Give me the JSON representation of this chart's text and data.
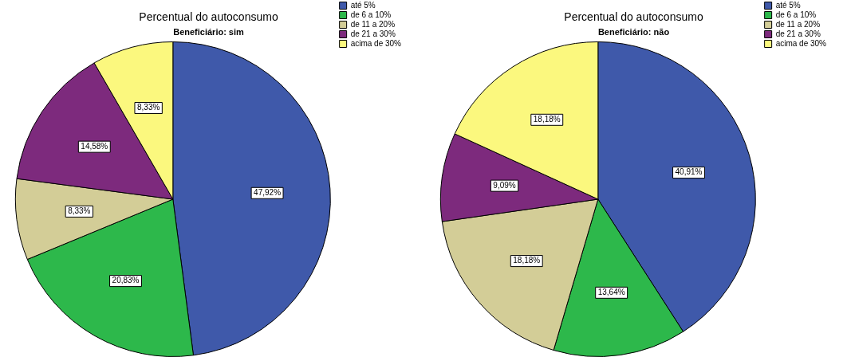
{
  "chart_data": [
    {
      "type": "pie",
      "title": "Percentual do autoconsumo",
      "subtitle": "Beneficiário: sim",
      "categories": [
        "até 5%",
        "de 6 a 10%",
        "de 11 a 20%",
        "de 21 a 30%",
        "acima de 30%"
      ],
      "values": [
        47.92,
        20.83,
        8.33,
        14.58,
        8.33
      ],
      "value_labels": [
        "47,92%",
        "20,83%",
        "8,33%",
        "14,58%",
        "8,33%"
      ],
      "colors": [
        "#3f59aa",
        "#2db84b",
        "#d3cd97",
        "#7d2a7d",
        "#fbf87e"
      ],
      "legend": "top right"
    },
    {
      "type": "pie",
      "title": "Percentual do autoconsumo",
      "subtitle": "Beneficiário: não",
      "categories": [
        "até 5%",
        "de 6 a 10%",
        "de 11 a 20%",
        "de 21 a 30%",
        "acima de 30%"
      ],
      "values": [
        40.91,
        13.64,
        18.18,
        9.09,
        18.18
      ],
      "value_labels": [
        "40,91%",
        "13,64%",
        "18,18%",
        "9,09%",
        "18,18%"
      ],
      "colors": [
        "#3f59aa",
        "#2db84b",
        "#d3cd97",
        "#7d2a7d",
        "#fbf87e"
      ],
      "legend": "top right"
    }
  ]
}
